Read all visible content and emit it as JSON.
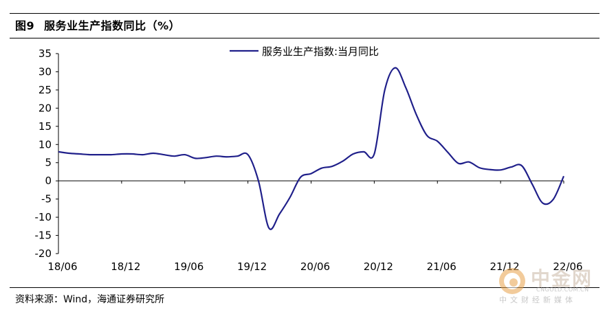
{
  "figure": {
    "label": "图9",
    "title": "服务业生产指数同比（%）"
  },
  "source": "资料来源：Wind，海通证券研究所",
  "watermark": {
    "name": "中金网",
    "url": "CNGOLD.COM.CN",
    "subtitle": "中文财经新媒体"
  },
  "chart_data": {
    "type": "line",
    "title": "",
    "xlabel": "",
    "ylabel": "",
    "ylim": [
      -20,
      35
    ],
    "yticks": [
      35,
      30,
      25,
      20,
      15,
      10,
      5,
      0,
      -5,
      -10,
      -15,
      -20
    ],
    "xticks": [
      "18/06",
      "18/12",
      "19/06",
      "19/12",
      "20/06",
      "20/12",
      "21/06",
      "21/12",
      "22/06"
    ],
    "legend_position": "top-center",
    "grid": false,
    "colors": {
      "series": "#1f1f8a"
    },
    "series": [
      {
        "name": "服务业生产指数:当月同比",
        "x": [
          "2018-06",
          "2018-07",
          "2018-08",
          "2018-09",
          "2018-10",
          "2018-11",
          "2018-12",
          "2019-01",
          "2019-02",
          "2019-03",
          "2019-04",
          "2019-05",
          "2019-06",
          "2019-07",
          "2019-08",
          "2019-09",
          "2019-10",
          "2019-11",
          "2019-12",
          "2020-01",
          "2020-02",
          "2020-03",
          "2020-04",
          "2020-05",
          "2020-06",
          "2020-07",
          "2020-08",
          "2020-09",
          "2020-10",
          "2020-11",
          "2020-12",
          "2021-01",
          "2021-02",
          "2021-03",
          "2021-04",
          "2021-05",
          "2021-06",
          "2021-07",
          "2021-08",
          "2021-09",
          "2021-10",
          "2021-11",
          "2021-12",
          "2022-01",
          "2022-02",
          "2022-03",
          "2022-04",
          "2022-05",
          "2022-06"
        ],
        "values": [
          8.0,
          7.6,
          7.4,
          7.2,
          7.2,
          7.2,
          7.4,
          7.4,
          7.2,
          7.6,
          7.2,
          6.8,
          7.2,
          6.2,
          6.4,
          6.8,
          6.6,
          6.8,
          7.2,
          0.0,
          -13.0,
          -9.1,
          -4.5,
          1.0,
          2.0,
          3.5,
          4.0,
          5.4,
          7.4,
          8.0,
          7.4,
          25.0,
          31.1,
          25.6,
          18.2,
          12.5,
          10.9,
          7.8,
          4.8,
          5.2,
          3.6,
          3.1,
          3.0,
          3.8,
          4.2,
          -0.9,
          -6.1,
          -5.1,
          1.3
        ]
      }
    ]
  }
}
